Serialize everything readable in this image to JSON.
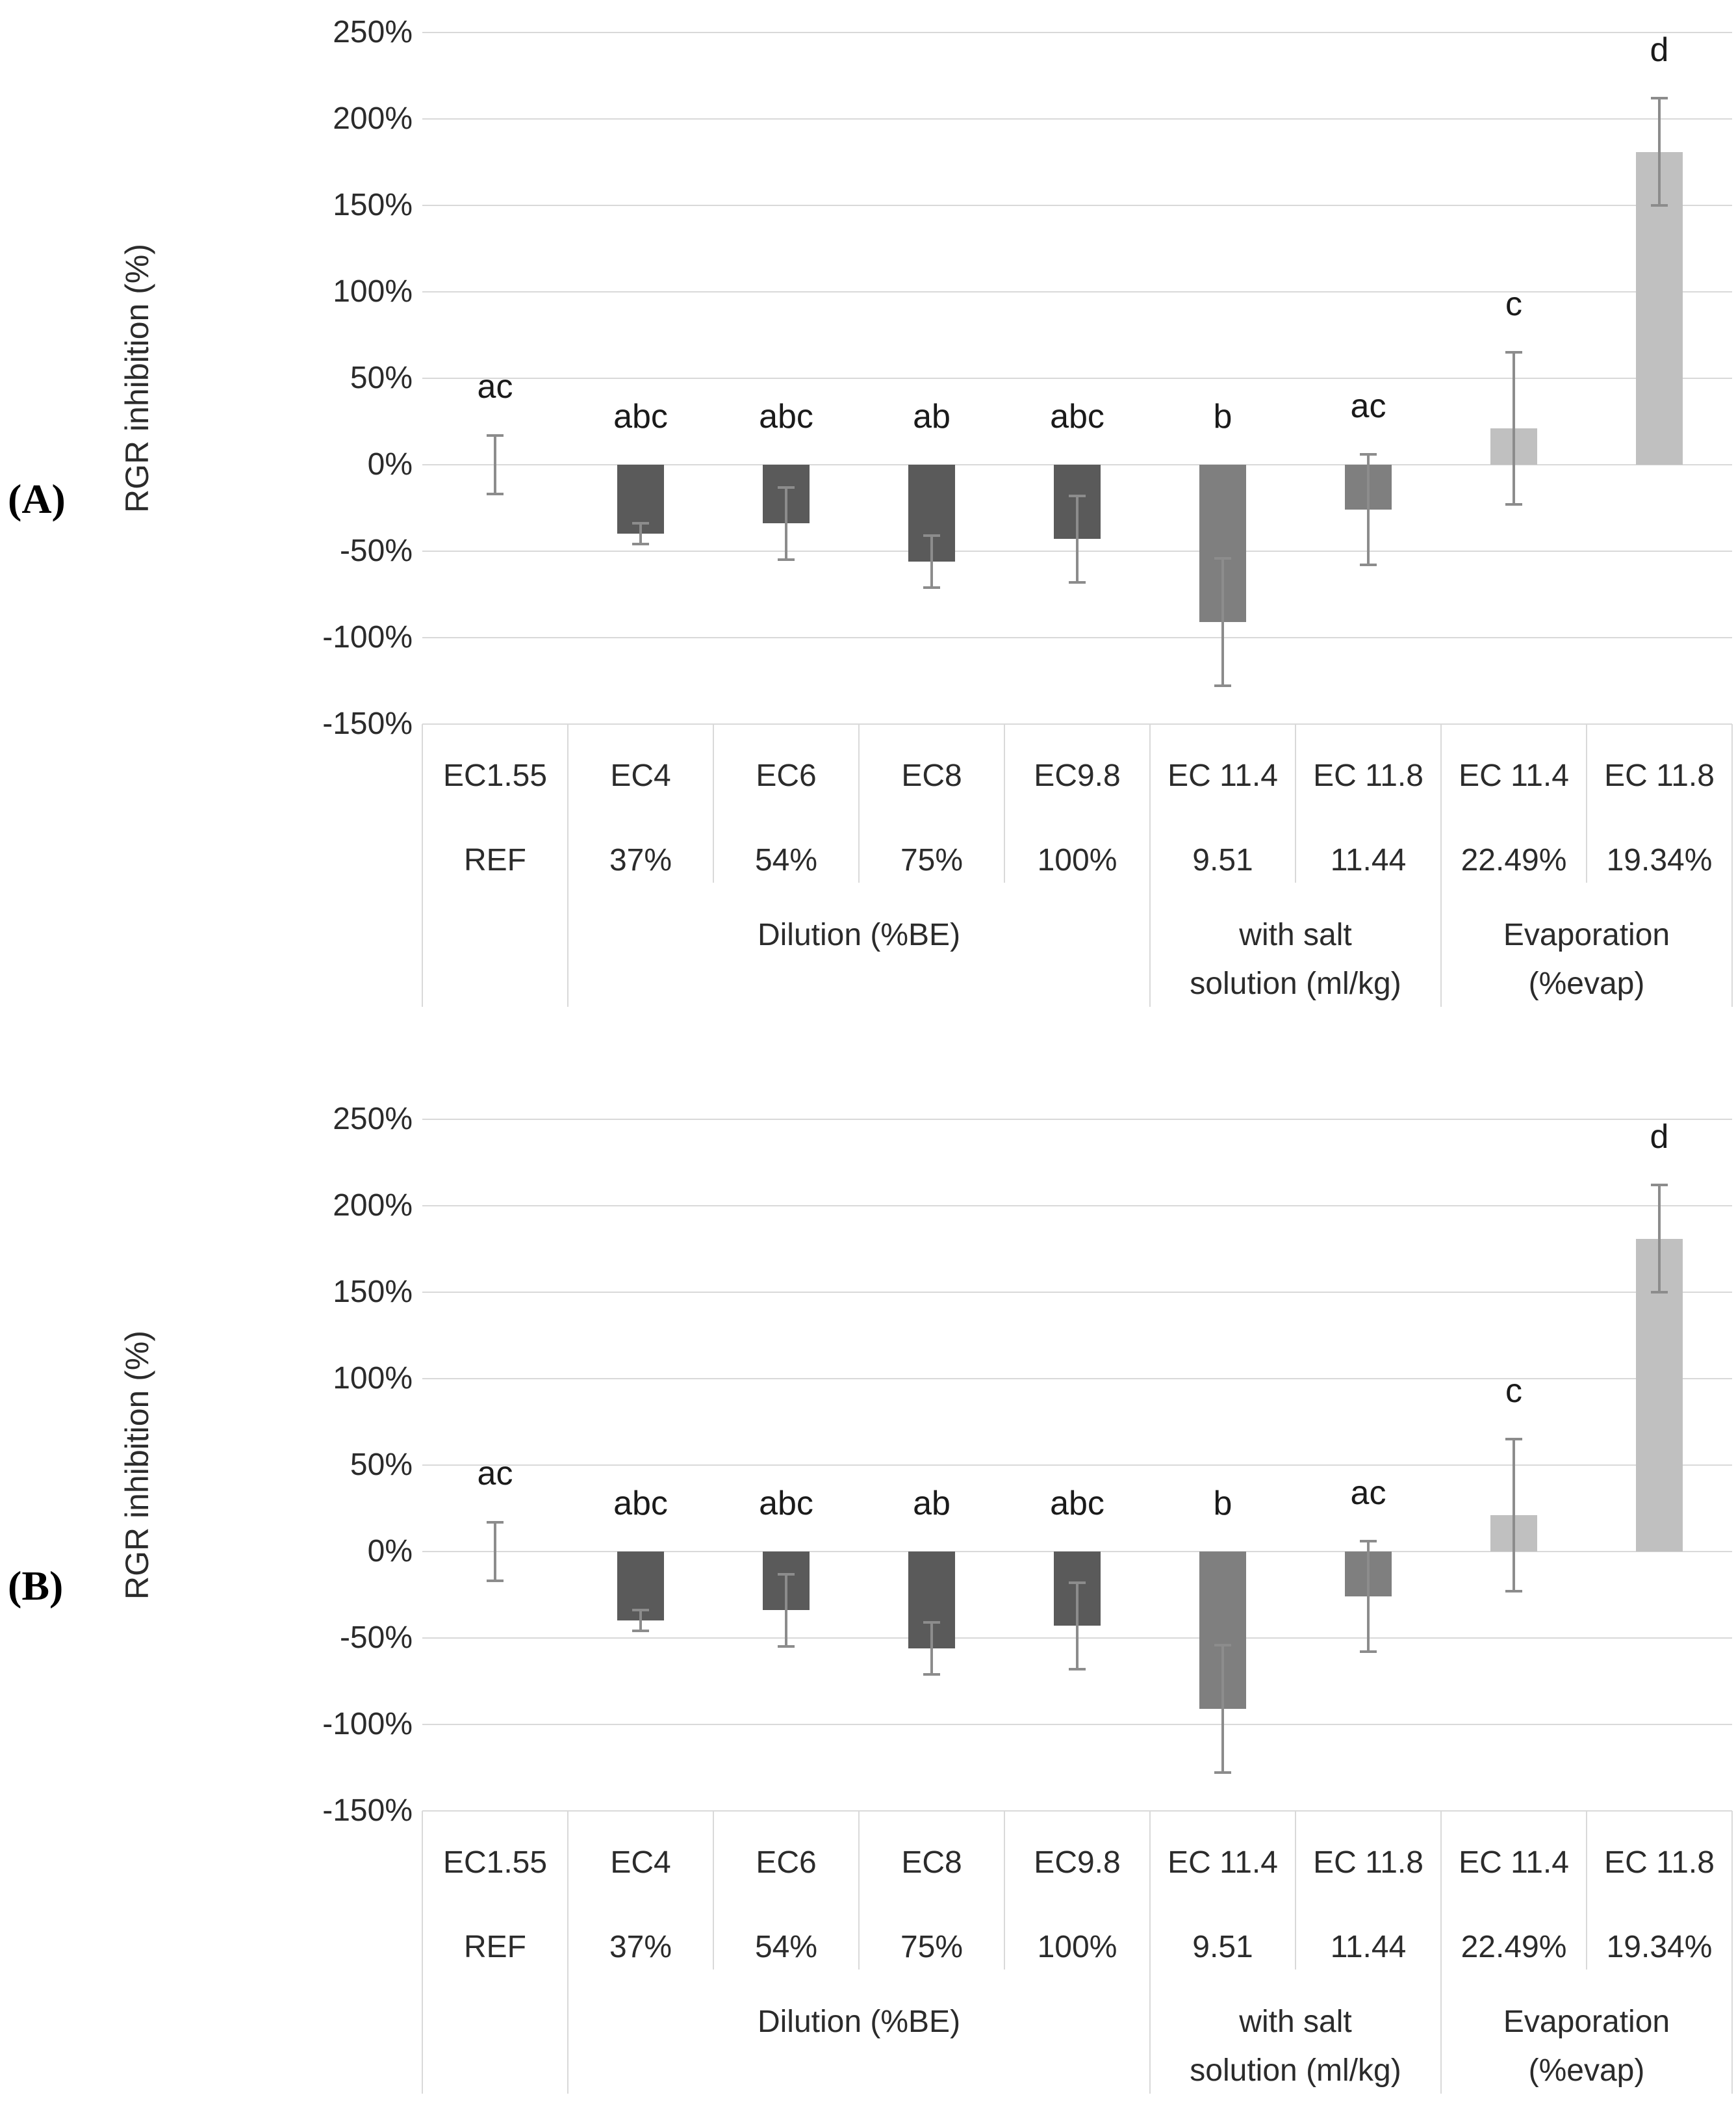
{
  "figure": {
    "description_visible_text_only": true,
    "panels": [
      {
        "label": "(A)"
      },
      {
        "label": "(B)"
      }
    ]
  },
  "colors": {
    "bar_dark": "#5a5a5a",
    "bar_medium": "#7f7f7f",
    "bar_light": "#c0c0c0",
    "gridline": "#d9d9d9",
    "error_bar": "#8c8c8c",
    "text": "#2b2b2b"
  },
  "chart_data": [
    {
      "type": "bar",
      "panel_label": "(A)",
      "title": "",
      "xlabel": "",
      "ylabel": "RGR inhibition (%)",
      "ylim": [
        -150,
        250
      ],
      "ytick_step": 50,
      "ytick_labels": [
        "250%",
        "200%",
        "150%",
        "100%",
        "50%",
        "0%",
        "-50%",
        "-100%",
        "-150%"
      ],
      "grid": true,
      "legend_position": "none",
      "categories": [
        "EC1.55",
        "EC4",
        "EC6",
        "EC8",
        "EC9.8",
        "EC 11.4",
        "EC 11.8",
        "EC 11.4",
        "EC 11.8"
      ],
      "category_sublabels": [
        "REF",
        "37%",
        "54%",
        "75%",
        "100%",
        "9.51",
        "11.44",
        "22.49%",
        "19.34%"
      ],
      "series": [
        {
          "name": "RGR inhibition (%)",
          "values": [
            0,
            -40,
            -34,
            -56,
            -43,
            -91,
            -26,
            21,
            181
          ],
          "errors": [
            17,
            6,
            21,
            15,
            25,
            37,
            32,
            44,
            31
          ]
        }
      ],
      "significance_letters": [
        "ac",
        "abc",
        "abc",
        "ab",
        "abc",
        "b",
        "ac",
        "c",
        "d"
      ],
      "bar_colors": [
        "#5a5a5a",
        "#5a5a5a",
        "#5a5a5a",
        "#5a5a5a",
        "#5a5a5a",
        "#7f7f7f",
        "#7f7f7f",
        "#c0c0c0",
        "#c0c0c0"
      ],
      "group_labels": [
        {
          "lines": [],
          "start": 0,
          "end": 0
        },
        {
          "lines": [
            "Dilution (%BE)"
          ],
          "start": 1,
          "end": 4
        },
        {
          "lines": [
            "with salt",
            "solution (ml/kg)"
          ],
          "start": 5,
          "end": 6
        },
        {
          "lines": [
            "Evaporation",
            "(%evap)"
          ],
          "start": 7,
          "end": 8
        }
      ]
    },
    {
      "type": "bar",
      "panel_label": "(B)",
      "title": "",
      "xlabel": "",
      "ylabel": "RGR inhibition (%)",
      "ylim": [
        -150,
        250
      ],
      "ytick_step": 50,
      "ytick_labels": [
        "250%",
        "200%",
        "150%",
        "100%",
        "50%",
        "0%",
        "-50%",
        "-100%",
        "-150%"
      ],
      "grid": true,
      "legend_position": "none",
      "categories": [
        "EC1.55",
        "EC4",
        "EC6",
        "EC8",
        "EC9.8",
        "EC 11.4",
        "EC 11.8",
        "EC 11.4",
        "EC 11.8"
      ],
      "category_sublabels": [
        "REF",
        "37%",
        "54%",
        "75%",
        "100%",
        "9.51",
        "11.44",
        "22.49%",
        "19.34%"
      ],
      "series": [
        {
          "name": "RGR inhibition (%)",
          "values": [
            0,
            -40,
            -34,
            -56,
            -43,
            -91,
            -26,
            21,
            181
          ],
          "errors": [
            17,
            6,
            21,
            15,
            25,
            37,
            32,
            44,
            31
          ]
        }
      ],
      "significance_letters": [
        "ac",
        "abc",
        "abc",
        "ab",
        "abc",
        "b",
        "ac",
        "c",
        "d"
      ],
      "bar_colors": [
        "#5a5a5a",
        "#5a5a5a",
        "#5a5a5a",
        "#5a5a5a",
        "#5a5a5a",
        "#7f7f7f",
        "#7f7f7f",
        "#c0c0c0",
        "#c0c0c0"
      ],
      "group_labels": [
        {
          "lines": [],
          "start": 0,
          "end": 0
        },
        {
          "lines": [
            "Dilution (%BE)"
          ],
          "start": 1,
          "end": 4
        },
        {
          "lines": [
            "with salt",
            "solution (ml/kg)"
          ],
          "start": 5,
          "end": 6
        },
        {
          "lines": [
            "Evaporation",
            "(%evap)"
          ],
          "start": 7,
          "end": 8
        }
      ]
    }
  ]
}
